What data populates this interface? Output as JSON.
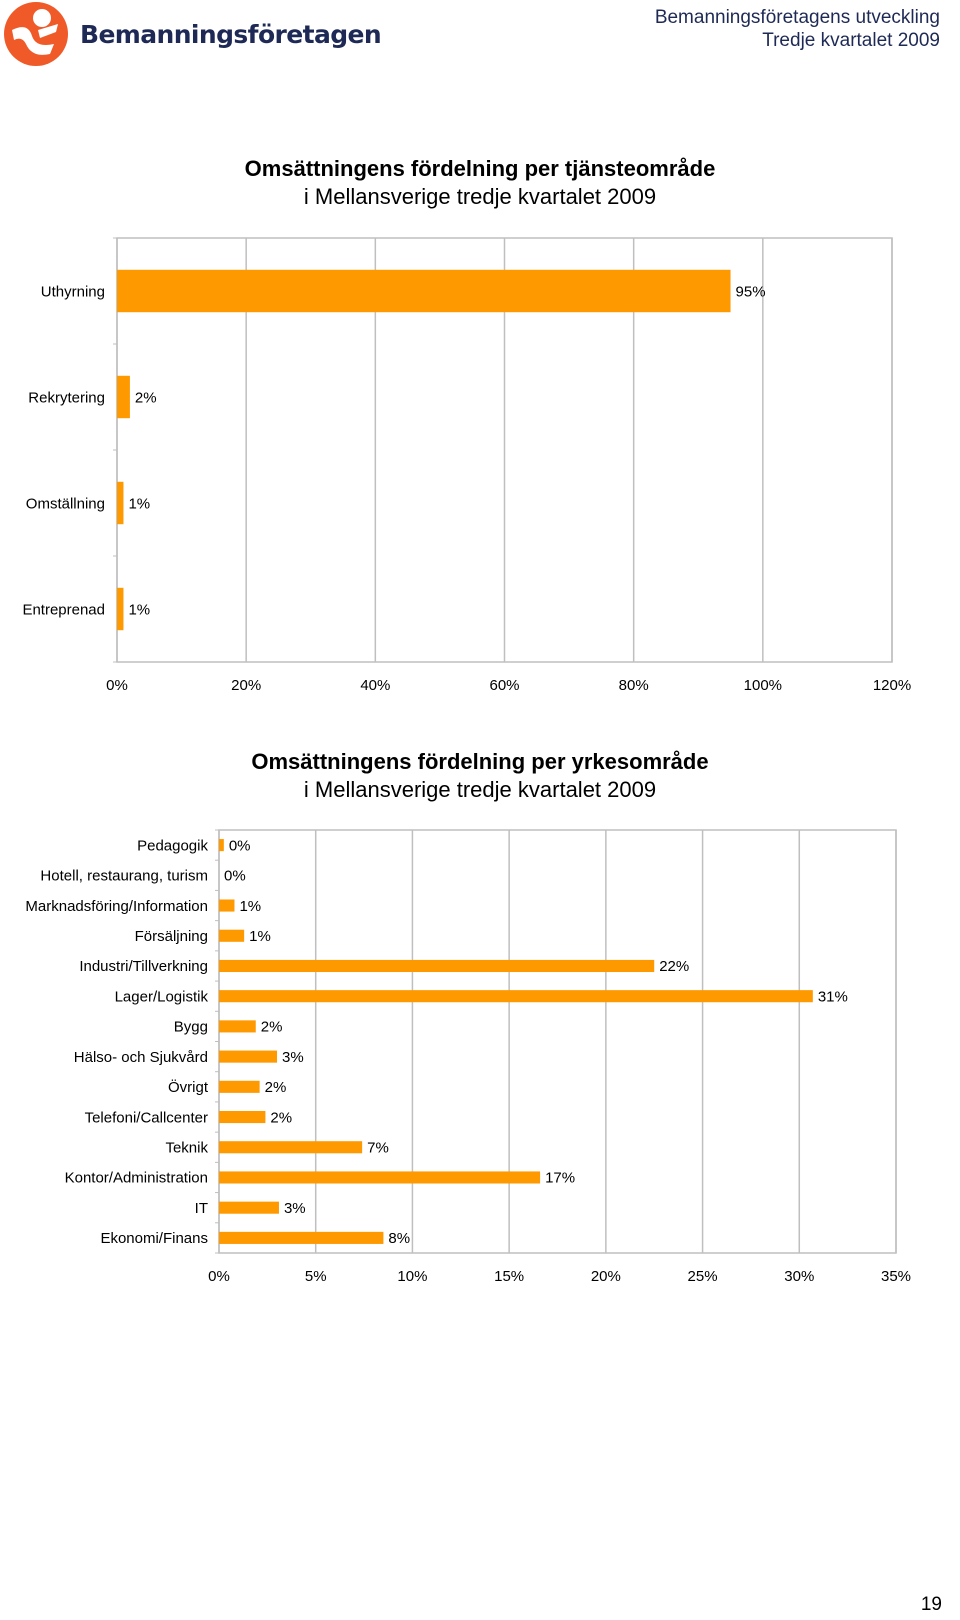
{
  "header": {
    "brand": "Bemanningsföretagen",
    "title": "Bemanningsföretagens utveckling",
    "subtitle": "Tredje kvartalet 2009"
  },
  "colors": {
    "bar": "#FF9900",
    "brand_orange": "#F05A28",
    "brand_navy": "#1E2A55",
    "grid": "#BFBFBF"
  },
  "page_number": "19",
  "chart_data": [
    {
      "type": "bar",
      "orientation": "horizontal",
      "title": "Omsättningens fördelning per tjänsteområde",
      "subtitle": "i Mellansverige tredje kvartalet 2009",
      "categories": [
        "Uthyrning",
        "Rekrytering",
        "Omställning",
        "Entreprenad"
      ],
      "values": [
        95,
        2,
        1,
        1
      ],
      "data_labels": [
        "95%",
        "2%",
        "1%",
        "1%"
      ],
      "xlim": [
        0,
        120
      ],
      "x_ticks": [
        "0%",
        "20%",
        "40%",
        "60%",
        "80%",
        "100%",
        "120%"
      ],
      "grid": true,
      "legend": "none"
    },
    {
      "type": "bar",
      "orientation": "horizontal",
      "title": "Omsättningens fördelning per yrkesområde",
      "subtitle": "i Mellansverige tredje kvartalet 2009",
      "categories": [
        "Pedagogik",
        "Hotell, restaurang, turism",
        "Marknadsföring/Information",
        "Försäljning",
        "Industri/Tillverkning",
        "Lager/Logistik",
        "Bygg",
        "Hälso- och Sjukvård",
        "Övrigt",
        "Telefoni/Callcenter",
        "Teknik",
        "Kontor/Administration",
        "IT",
        "Ekonomi/Finans"
      ],
      "values": [
        0.25,
        0,
        0.8,
        1.3,
        22.5,
        30.7,
        1.9,
        3.0,
        2.1,
        2.4,
        7.4,
        16.6,
        3.1,
        8.5
      ],
      "data_labels": [
        "0%",
        "0%",
        "1%",
        "1%",
        "22%",
        "31%",
        "2%",
        "3%",
        "2%",
        "2%",
        "7%",
        "17%",
        "3%",
        "8%"
      ],
      "xlim": [
        0,
        35
      ],
      "x_ticks": [
        "0%",
        "5%",
        "10%",
        "15%",
        "20%",
        "25%",
        "30%",
        "35%"
      ],
      "grid": true,
      "legend": "none"
    }
  ]
}
